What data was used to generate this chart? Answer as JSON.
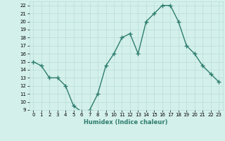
{
  "x": [
    0,
    1,
    2,
    3,
    4,
    5,
    6,
    7,
    8,
    9,
    10,
    11,
    12,
    13,
    14,
    15,
    16,
    17,
    18,
    19,
    20,
    21,
    22,
    23
  ],
  "y": [
    15,
    14.5,
    13,
    13,
    12,
    9.5,
    8.8,
    9,
    11,
    14.5,
    16,
    18,
    18.5,
    16,
    20,
    21,
    22,
    22,
    20,
    17,
    16,
    14.5,
    13.5,
    12.5
  ],
  "line_color": "#2d7d6e",
  "marker": "+",
  "marker_size": 4,
  "marker_lw": 1.0,
  "line_width": 1.0,
  "bg_color": "#d4f0eb",
  "grid_color": "#b8ddd7",
  "xlabel": "Humidex (Indice chaleur)",
  "ylim": [
    9,
    22.5
  ],
  "xlim": [
    -0.5,
    23.5
  ],
  "yticks": [
    9,
    10,
    11,
    12,
    13,
    14,
    15,
    16,
    17,
    18,
    19,
    20,
    21,
    22
  ],
  "xticks": [
    0,
    1,
    2,
    3,
    4,
    5,
    6,
    7,
    8,
    9,
    10,
    11,
    12,
    13,
    14,
    15,
    16,
    17,
    18,
    19,
    20,
    21,
    22,
    23
  ],
  "tick_fontsize": 5,
  "xlabel_fontsize": 6,
  "xlabel_color": "#2d7d6e"
}
